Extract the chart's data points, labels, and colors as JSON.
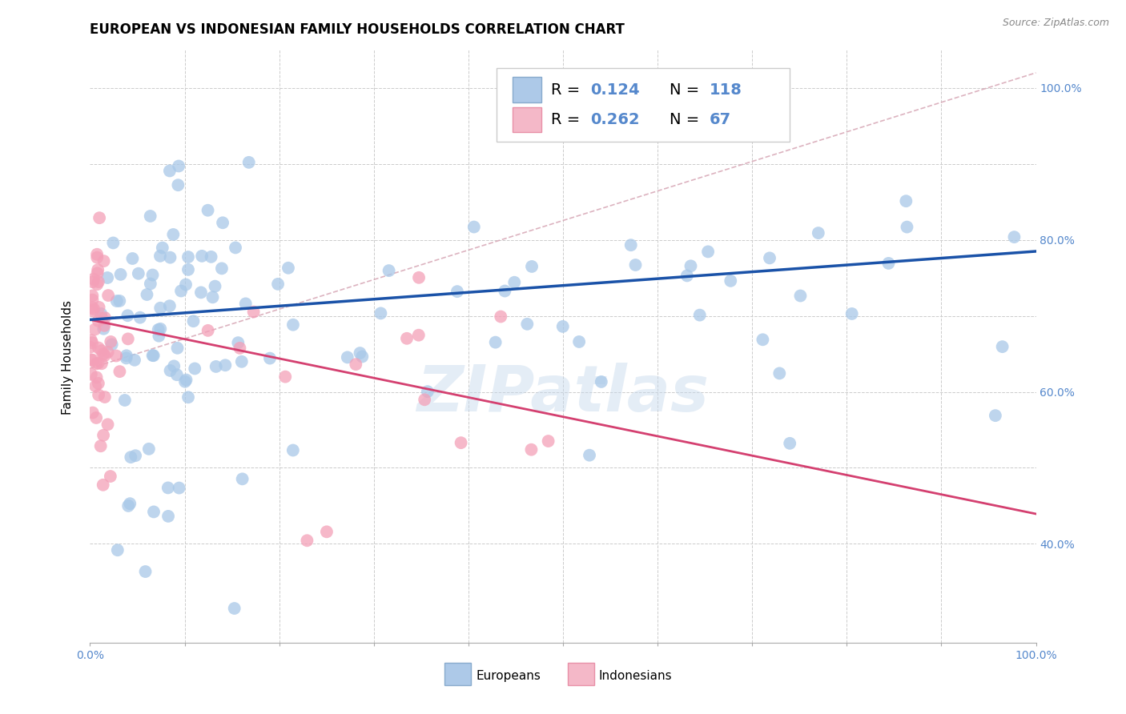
{
  "title": "EUROPEAN VS INDONESIAN FAMILY HOUSEHOLDS CORRELATION CHART",
  "source": "Source: ZipAtlas.com",
  "ylabel": "Family Households",
  "yticks": [
    40.0,
    60.0,
    80.0,
    100.0
  ],
  "ytick_minor": [
    50.0,
    70.0,
    90.0
  ],
  "xlim": [
    0.0,
    1.0
  ],
  "ylim": [
    0.27,
    1.05
  ],
  "european_color": "#a8c8e8",
  "indonesian_color": "#f4a0b8",
  "european_line_color": "#1a52a8",
  "indonesian_line_color": "#d44070",
  "dashed_line_color": "#d4a0b0",
  "legend_R1": "0.124",
  "legend_N1": "118",
  "legend_R2": "0.262",
  "legend_N2": "67",
  "watermark": "ZIPatlas",
  "background_color": "#ffffff",
  "europeans_label": "Europeans",
  "indonesians_label": "Indonesians",
  "title_fontsize": 12,
  "axis_label_fontsize": 11,
  "tick_fontsize": 10,
  "legend_fontsize": 14,
  "eu_trend_x0": 0.0,
  "eu_trend_y0": 0.695,
  "eu_trend_x1": 1.0,
  "eu_trend_y1": 0.785,
  "id_trend_x0": 0.0,
  "id_trend_y0": 0.695,
  "id_trend_x1": 0.45,
  "id_trend_y1": 0.58,
  "dash_trend_x0": 0.1,
  "dash_trend_y0": 0.67,
  "dash_trend_x1": 1.0,
  "dash_trend_y1": 1.02
}
